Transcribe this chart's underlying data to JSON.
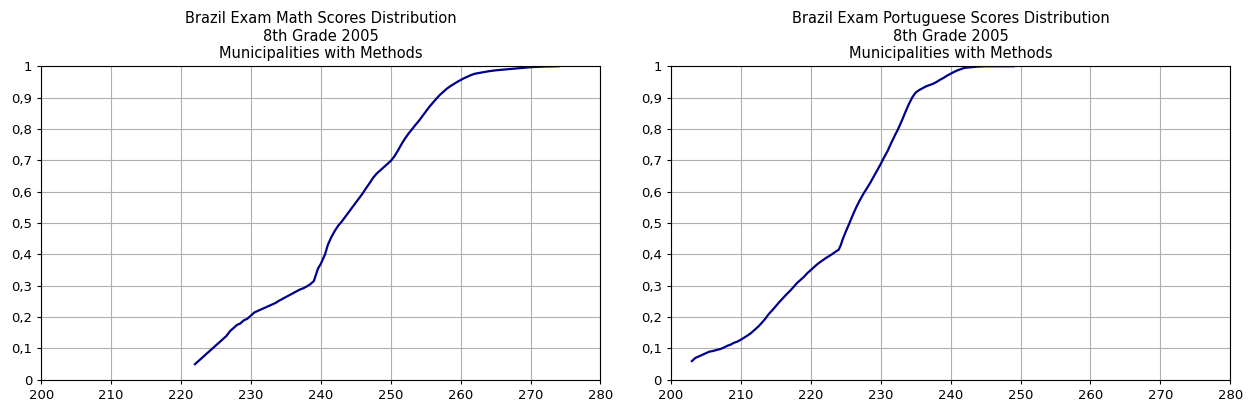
{
  "math_title": "Brazil Exam Math Scores Distribution\n8th Grade 2005\nMunicipalities with Methods",
  "port_title": "Brazil Exam Portuguese Scores Distribution\n8th Grade 2005\nMunicipalities with Methods",
  "xlim": [
    200,
    280
  ],
  "ylim": [
    0,
    1
  ],
  "xticks": [
    200,
    210,
    220,
    230,
    240,
    250,
    260,
    270,
    280
  ],
  "yticks": [
    0,
    0.1,
    0.2,
    0.3,
    0.4,
    0.5,
    0.6,
    0.7,
    0.8,
    0.9,
    1
  ],
  "ytick_labels": [
    "0",
    "0,1",
    "0,2",
    "0,3",
    "0,4",
    "0,5",
    "0,6",
    "0,7",
    "0,8",
    "0,9",
    "1"
  ],
  "line_color": "#00008B",
  "line_width": 1.6,
  "bg_color": "#ffffff",
  "grid_color": "#b0b0b0",
  "math_x": [
    222.0,
    222.5,
    223.0,
    223.5,
    224.0,
    224.5,
    225.0,
    225.5,
    226.0,
    226.5,
    227.0,
    227.5,
    228.0,
    228.5,
    229.0,
    229.5,
    230.0,
    230.5,
    231.0,
    231.5,
    232.0,
    232.5,
    233.0,
    233.5,
    234.0,
    234.5,
    235.0,
    235.5,
    236.0,
    236.5,
    237.0,
    237.5,
    238.0,
    238.5,
    239.0,
    239.3,
    239.6,
    240.0,
    240.3,
    240.6,
    241.0,
    241.5,
    242.0,
    242.5,
    243.0,
    243.5,
    244.0,
    244.5,
    245.0,
    245.5,
    246.0,
    246.5,
    247.0,
    247.5,
    248.0,
    248.5,
    249.0,
    249.5,
    250.0,
    250.5,
    251.0,
    251.5,
    252.0,
    252.5,
    253.0,
    253.5,
    254.0,
    254.5,
    255.0,
    255.5,
    256.0,
    256.5,
    257.0,
    257.5,
    258.0,
    258.5,
    259.0,
    259.5,
    260.0,
    260.5,
    261.0,
    261.5,
    262.0,
    263.0,
    264.0,
    265.0,
    266.0,
    267.0,
    268.0,
    269.0,
    270.0,
    271.0,
    272.0,
    273.0,
    274.0
  ],
  "math_y": [
    0.05,
    0.06,
    0.07,
    0.08,
    0.09,
    0.1,
    0.11,
    0.12,
    0.13,
    0.14,
    0.155,
    0.165,
    0.175,
    0.18,
    0.19,
    0.195,
    0.205,
    0.215,
    0.22,
    0.225,
    0.23,
    0.235,
    0.24,
    0.245,
    0.252,
    0.258,
    0.264,
    0.27,
    0.276,
    0.282,
    0.288,
    0.292,
    0.298,
    0.305,
    0.315,
    0.335,
    0.355,
    0.37,
    0.385,
    0.4,
    0.43,
    0.455,
    0.475,
    0.492,
    0.505,
    0.52,
    0.535,
    0.55,
    0.565,
    0.58,
    0.595,
    0.612,
    0.628,
    0.645,
    0.658,
    0.668,
    0.678,
    0.688,
    0.698,
    0.712,
    0.73,
    0.75,
    0.768,
    0.784,
    0.798,
    0.812,
    0.825,
    0.84,
    0.855,
    0.87,
    0.883,
    0.896,
    0.908,
    0.918,
    0.928,
    0.936,
    0.943,
    0.95,
    0.956,
    0.962,
    0.967,
    0.972,
    0.976,
    0.98,
    0.984,
    0.987,
    0.989,
    0.991,
    0.993,
    0.995,
    0.997,
    0.998,
    0.999,
    0.9995,
    1.0
  ],
  "port_x": [
    203.0,
    203.5,
    204.0,
    204.5,
    205.0,
    205.5,
    206.0,
    206.5,
    207.0,
    207.5,
    208.0,
    208.5,
    209.0,
    209.5,
    210.0,
    210.5,
    211.0,
    211.5,
    212.0,
    212.5,
    213.0,
    213.5,
    214.0,
    214.5,
    215.0,
    215.5,
    216.0,
    216.5,
    217.0,
    217.5,
    218.0,
    218.5,
    219.0,
    219.5,
    220.0,
    220.5,
    221.0,
    221.5,
    222.0,
    222.5,
    223.0,
    223.5,
    224.0,
    224.3,
    224.6,
    225.0,
    225.5,
    226.0,
    226.5,
    227.0,
    227.5,
    228.0,
    228.5,
    229.0,
    229.5,
    230.0,
    230.5,
    231.0,
    231.5,
    232.0,
    232.5,
    233.0,
    233.5,
    234.0,
    234.5,
    235.0,
    235.5,
    236.0,
    236.5,
    237.0,
    237.5,
    238.0,
    238.5,
    239.0,
    239.5,
    240.0,
    240.5,
    241.0,
    241.5,
    242.0,
    243.0,
    244.0,
    245.0,
    246.0,
    247.0,
    248.0,
    249.0
  ],
  "port_y": [
    0.06,
    0.07,
    0.075,
    0.08,
    0.085,
    0.09,
    0.092,
    0.095,
    0.098,
    0.102,
    0.108,
    0.112,
    0.118,
    0.122,
    0.128,
    0.135,
    0.142,
    0.15,
    0.16,
    0.17,
    0.182,
    0.195,
    0.21,
    0.222,
    0.235,
    0.248,
    0.26,
    0.272,
    0.283,
    0.295,
    0.308,
    0.318,
    0.328,
    0.34,
    0.35,
    0.36,
    0.37,
    0.378,
    0.386,
    0.393,
    0.4,
    0.408,
    0.415,
    0.43,
    0.45,
    0.472,
    0.498,
    0.525,
    0.55,
    0.572,
    0.592,
    0.61,
    0.628,
    0.648,
    0.668,
    0.688,
    0.71,
    0.73,
    0.755,
    0.778,
    0.8,
    0.825,
    0.852,
    0.878,
    0.9,
    0.916,
    0.924,
    0.93,
    0.936,
    0.94,
    0.944,
    0.95,
    0.957,
    0.963,
    0.97,
    0.976,
    0.982,
    0.987,
    0.991,
    0.995,
    0.997,
    0.999,
    1.0,
    1.0,
    1.0,
    1.0,
    1.0
  ],
  "title_fontsize": 10.5,
  "tick_fontsize": 9.5
}
